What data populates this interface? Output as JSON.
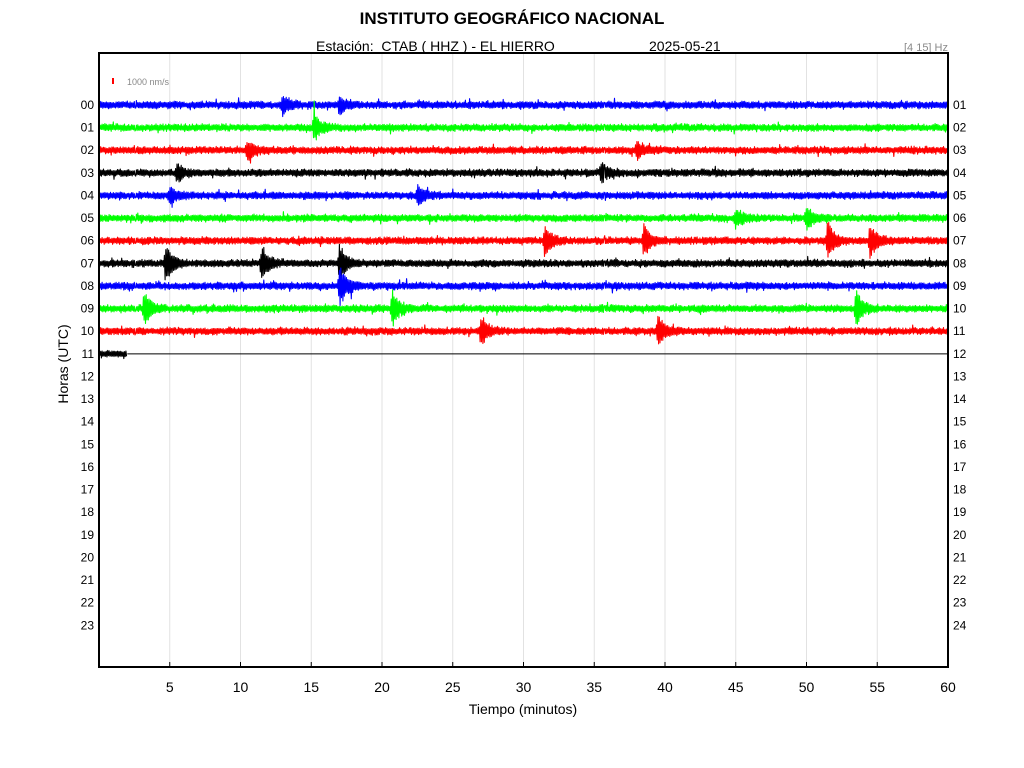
{
  "header": {
    "title": "INSTITUTO GEOGRÁFICO NACIONAL",
    "station_text": "Estación:  CTAB ( HHZ ) - EL HIERRO",
    "date": "2025-05-21",
    "filter_band": "[4 15] Hz"
  },
  "chart_data": {
    "type": "line",
    "title": "INSTITUTO GEOGRÁFICO NACIONAL",
    "xlabel": "Tiempo (minutos)",
    "ylabel": "Horas (UTC)",
    "xlim": [
      0,
      60
    ],
    "x_ticks": [
      5,
      10,
      15,
      20,
      25,
      30,
      35,
      40,
      45,
      50,
      55,
      60
    ],
    "grid": true,
    "left_hour_labels": [
      "00",
      "01",
      "02",
      "03",
      "04",
      "05",
      "06",
      "07",
      "08",
      "09",
      "10",
      "11",
      "12",
      "13",
      "14",
      "15",
      "16",
      "17",
      "18",
      "19",
      "20",
      "21",
      "22",
      "23"
    ],
    "right_hour_labels": [
      "01",
      "02",
      "03",
      "04",
      "05",
      "06",
      "07",
      "08",
      "09",
      "10",
      "11",
      "12",
      "13",
      "14",
      "15",
      "16",
      "17",
      "18",
      "19",
      "20",
      "21",
      "22",
      "23",
      "24"
    ],
    "scale_label": "1000 nm/s",
    "scale_color": "#ff0000",
    "trace_colors": [
      "#0000ff",
      "#00ff00",
      "#ff0000",
      "#000000"
    ],
    "recorded_until": {
      "hour": 11,
      "minute": 2.0
    },
    "trace_amplitude_nm_s": 700,
    "events": [
      {
        "hour": 0,
        "minute": 13.0,
        "amplitude_nm_s": 1500
      },
      {
        "hour": 0,
        "minute": 17.0,
        "amplitude_nm_s": 1500
      },
      {
        "hour": 1,
        "minute": 15.2,
        "amplitude_nm_s": 2000
      },
      {
        "hour": 2,
        "minute": 10.5,
        "amplitude_nm_s": 1500
      },
      {
        "hour": 2,
        "minute": 38.0,
        "amplitude_nm_s": 1500
      },
      {
        "hour": 3,
        "minute": 5.5,
        "amplitude_nm_s": 1500
      },
      {
        "hour": 3,
        "minute": 35.5,
        "amplitude_nm_s": 1500
      },
      {
        "hour": 4,
        "minute": 5.0,
        "amplitude_nm_s": 1500
      },
      {
        "hour": 4,
        "minute": 22.5,
        "amplitude_nm_s": 1500
      },
      {
        "hour": 5,
        "minute": 45.0,
        "amplitude_nm_s": 1500
      },
      {
        "hour": 5,
        "minute": 50.0,
        "amplitude_nm_s": 1800
      },
      {
        "hour": 6,
        "minute": 31.5,
        "amplitude_nm_s": 2500
      },
      {
        "hour": 6,
        "minute": 38.5,
        "amplitude_nm_s": 2500
      },
      {
        "hour": 6,
        "minute": 51.5,
        "amplitude_nm_s": 3000
      },
      {
        "hour": 6,
        "minute": 54.5,
        "amplitude_nm_s": 3000
      },
      {
        "hour": 7,
        "minute": 4.7,
        "amplitude_nm_s": 3000
      },
      {
        "hour": 7,
        "minute": 11.5,
        "amplitude_nm_s": 2800
      },
      {
        "hour": 7,
        "minute": 17.0,
        "amplitude_nm_s": 3000
      },
      {
        "hour": 8,
        "minute": 17.0,
        "amplitude_nm_s": 3500
      },
      {
        "hour": 9,
        "minute": 3.2,
        "amplitude_nm_s": 2500
      },
      {
        "hour": 9,
        "minute": 20.7,
        "amplitude_nm_s": 3000
      },
      {
        "hour": 9,
        "minute": 53.5,
        "amplitude_nm_s": 3000
      },
      {
        "hour": 10,
        "minute": 27.0,
        "amplitude_nm_s": 2500
      },
      {
        "hour": 10,
        "minute": 39.5,
        "amplitude_nm_s": 2500
      }
    ]
  }
}
